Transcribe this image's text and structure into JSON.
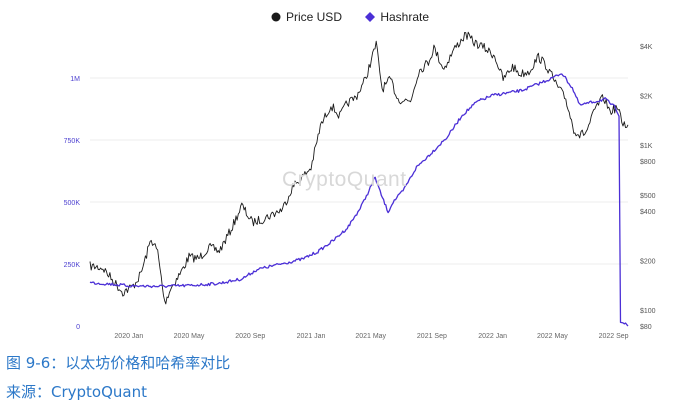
{
  "legend": [
    {
      "label": "Price USD",
      "color": "#1a1a1a",
      "shape": "circle"
    },
    {
      "label": "Hashrate",
      "color": "#4b2fd6",
      "shape": "diamond"
    }
  ],
  "watermark": "CryptoQuant",
  "caption": {
    "title": "图 9-6：以太坊价格和哈希率对比",
    "source": "来源：CryptoQuant"
  },
  "chart_data": {
    "type": "line",
    "x_ticks": [
      "2020 Jan",
      "2020 May",
      "2020 Sep",
      "2021 Jan",
      "2021 May",
      "2021 Sep",
      "2022 Jan",
      "2022 May",
      "2022 Sep"
    ],
    "x_start": "2019-10-15",
    "x_end": "2022-09-30",
    "left_axis": {
      "series": "Hashrate",
      "color": "#4b3fd0",
      "ticks": [
        {
          "value": 0,
          "label": "0"
        },
        {
          "value": 250000,
          "label": "250K"
        },
        {
          "value": 500000,
          "label": "500K"
        },
        {
          "value": 750000,
          "label": "750K"
        },
        {
          "value": 1000000,
          "label": "1M"
        }
      ],
      "range": [
        0,
        1000000
      ]
    },
    "right_axis": {
      "series": "Price USD",
      "scale": "log",
      "ticks": [
        {
          "value": 80,
          "label": "$80"
        },
        {
          "value": 100,
          "label": "$100"
        },
        {
          "value": 200,
          "label": "$200"
        },
        {
          "value": 400,
          "label": "$400"
        },
        {
          "value": 500,
          "label": "$500"
        },
        {
          "value": 800,
          "label": "$800"
        },
        {
          "value": 1000,
          "label": "$1K"
        },
        {
          "value": 2000,
          "label": "$2K"
        },
        {
          "value": 4000,
          "label": "$4K"
        }
      ],
      "range": [
        80,
        5000
      ]
    },
    "series": [
      {
        "name": "Price USD",
        "color": "#1a1a1a",
        "axis": "right",
        "points": [
          [
            "2019-10-15",
            185
          ],
          [
            "2019-11-10",
            180
          ],
          [
            "2019-12-01",
            150
          ],
          [
            "2019-12-20",
            128
          ],
          [
            "2020-01-10",
            140
          ],
          [
            "2020-01-25",
            165
          ],
          [
            "2020-02-15",
            270
          ],
          [
            "2020-02-28",
            225
          ],
          [
            "2020-03-13",
            110
          ],
          [
            "2020-03-25",
            135
          ],
          [
            "2020-04-15",
            170
          ],
          [
            "2020-05-01",
            210
          ],
          [
            "2020-05-20",
            205
          ],
          [
            "2020-06-10",
            240
          ],
          [
            "2020-07-01",
            228
          ],
          [
            "2020-07-25",
            310
          ],
          [
            "2020-08-15",
            430
          ],
          [
            "2020-09-05",
            340
          ],
          [
            "2020-09-25",
            355
          ],
          [
            "2020-10-15",
            380
          ],
          [
            "2020-11-05",
            410
          ],
          [
            "2020-11-25",
            560
          ],
          [
            "2020-12-15",
            640
          ],
          [
            "2021-01-01",
            730
          ],
          [
            "2021-01-20",
            1300
          ],
          [
            "2021-02-10",
            1750
          ],
          [
            "2021-02-28",
            1500
          ],
          [
            "2021-03-15",
            1800
          ],
          [
            "2021-04-01",
            1950
          ],
          [
            "2021-04-20",
            2500
          ],
          [
            "2021-05-05",
            3500
          ],
          [
            "2021-05-12",
            4100
          ],
          [
            "2021-05-24",
            2200
          ],
          [
            "2021-06-10",
            2500
          ],
          [
            "2021-06-25",
            1900
          ],
          [
            "2021-07-20",
            1850
          ],
          [
            "2021-08-05",
            2800
          ],
          [
            "2021-08-25",
            3200
          ],
          [
            "2021-09-05",
            3900
          ],
          [
            "2021-09-25",
            2900
          ],
          [
            "2021-10-15",
            3800
          ],
          [
            "2021-11-08",
            4700
          ],
          [
            "2021-11-25",
            4200
          ],
          [
            "2021-12-15",
            3900
          ],
          [
            "2022-01-05",
            3500
          ],
          [
            "2022-01-22",
            2500
          ],
          [
            "2022-02-10",
            3000
          ],
          [
            "2022-02-25",
            2700
          ],
          [
            "2022-03-15",
            2800
          ],
          [
            "2022-04-03",
            3450
          ],
          [
            "2022-04-20",
            3000
          ],
          [
            "2022-05-10",
            2300
          ],
          [
            "2022-05-28",
            1900
          ],
          [
            "2022-06-13",
            1250
          ],
          [
            "2022-06-25",
            1150
          ],
          [
            "2022-07-08",
            1200
          ],
          [
            "2022-07-28",
            1700
          ],
          [
            "2022-08-12",
            1950
          ],
          [
            "2022-08-25",
            1600
          ],
          [
            "2022-09-08",
            1700
          ],
          [
            "2022-09-20",
            1350
          ],
          [
            "2022-09-30",
            1330
          ]
        ]
      },
      {
        "name": "Hashrate",
        "color": "#4b2fd6",
        "axis": "left",
        "points": [
          [
            "2019-10-15",
            175000
          ],
          [
            "2019-12-01",
            168000
          ],
          [
            "2020-01-01",
            162000
          ],
          [
            "2020-03-01",
            160000
          ],
          [
            "2020-05-01",
            163000
          ],
          [
            "2020-07-01",
            172000
          ],
          [
            "2020-08-15",
            190000
          ],
          [
            "2020-09-15",
            228000
          ],
          [
            "2020-11-01",
            250000
          ],
          [
            "2020-12-15",
            270000
          ],
          [
            "2021-01-15",
            300000
          ],
          [
            "2021-02-15",
            345000
          ],
          [
            "2021-03-15",
            395000
          ],
          [
            "2021-04-10",
            475000
          ],
          [
            "2021-04-25",
            535000
          ],
          [
            "2021-05-10",
            600000
          ],
          [
            "2021-05-20",
            540000
          ],
          [
            "2021-06-05",
            460000
          ],
          [
            "2021-06-15",
            500000
          ],
          [
            "2021-07-05",
            545000
          ],
          [
            "2021-08-01",
            640000
          ],
          [
            "2021-09-01",
            700000
          ],
          [
            "2021-10-01",
            760000
          ],
          [
            "2021-11-01",
            850000
          ],
          [
            "2021-12-01",
            905000
          ],
          [
            "2022-01-01",
            930000
          ],
          [
            "2022-02-01",
            940000
          ],
          [
            "2022-03-01",
            950000
          ],
          [
            "2022-04-01",
            975000
          ],
          [
            "2022-05-01",
            1000000
          ],
          [
            "2022-05-20",
            1020000
          ],
          [
            "2022-06-10",
            960000
          ],
          [
            "2022-06-25",
            890000
          ],
          [
            "2022-07-15",
            900000
          ],
          [
            "2022-08-15",
            915000
          ],
          [
            "2022-09-05",
            880000
          ],
          [
            "2022-09-12",
            850000
          ],
          [
            "2022-09-15",
            20000
          ],
          [
            "2022-09-30",
            0
          ]
        ]
      }
    ]
  }
}
